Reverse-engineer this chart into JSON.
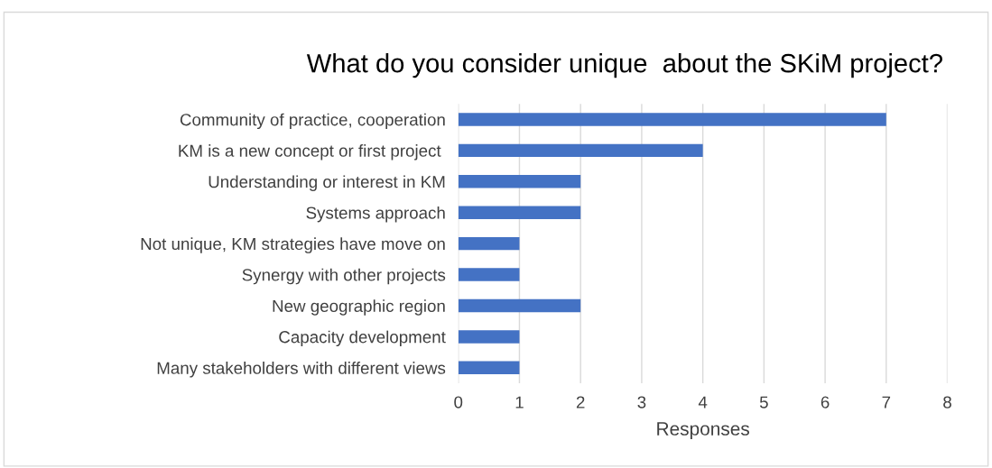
{
  "chart_data": {
    "type": "bar",
    "orientation": "horizontal",
    "title": "What do you consider unique  about the SKiM project?",
    "xlabel": "Responses",
    "categories": [
      "Community of practice, cooperation",
      "KM is a new concept or first project ",
      "Understanding or interest in KM",
      "Systems approach",
      "Not unique, KM strategies have move on",
      "Synergy with other projects",
      "New geographic region",
      "Capacity development",
      "Many stakeholders with different views"
    ],
    "values": [
      7,
      4,
      2,
      2,
      1,
      1,
      2,
      1,
      1
    ],
    "color": "#4472c4",
    "xlim": [
      0,
      8
    ],
    "xticks": [
      0,
      1,
      2,
      3,
      4,
      5,
      6,
      7,
      8
    ],
    "grid": "x"
  }
}
